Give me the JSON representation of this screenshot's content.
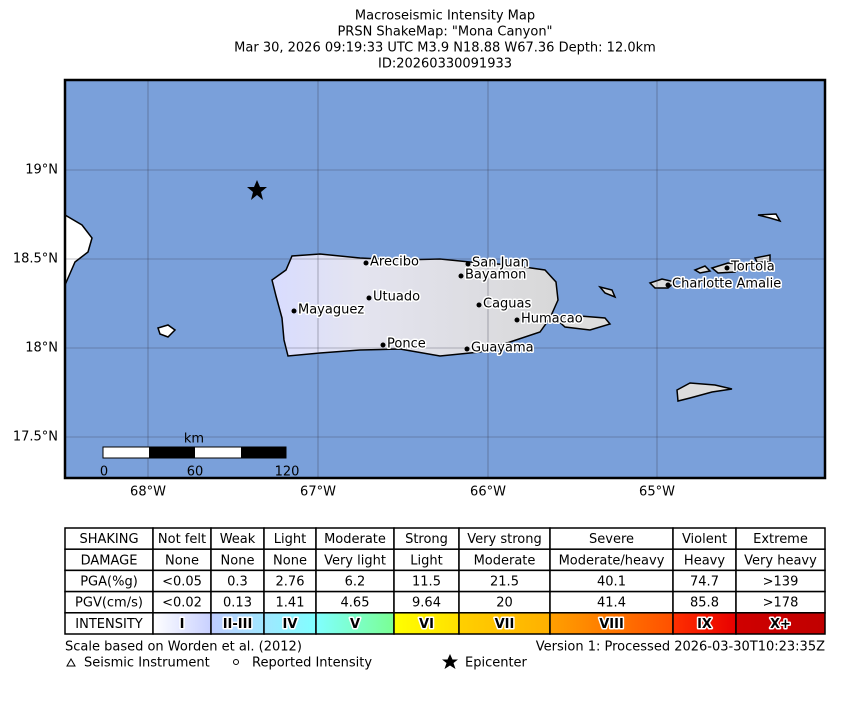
{
  "header": {
    "title_lines": [
      "Macroseismic Intensity Map",
      "PRSN ShakeMap: \"Mona Canyon\"",
      "Mar 30, 2026 09:19:33 UTC M3.9 N18.88 W67.36 Depth: 12.0km",
      "ID:20260330091933"
    ]
  },
  "map": {
    "lat_labels": [
      "19°N",
      "18.5°N",
      "18°N",
      "17.5°N"
    ],
    "lon_labels": [
      "68°W",
      "67°W",
      "66°W",
      "65°W"
    ],
    "cities": [
      "Arecibo",
      "San Juan",
      "Bayamon",
      "Utuado",
      "Caguas",
      "Mayaguez",
      "Humacao",
      "Ponce",
      "Guayama",
      "Tortola",
      "Charlotte Amalie"
    ],
    "scale": {
      "unit": "km",
      "labels": [
        "0",
        "60",
        "120"
      ]
    }
  },
  "table": {
    "rows": [
      [
        "SHAKING",
        "Not felt",
        "Weak",
        "Light",
        "Moderate",
        "Strong",
        "Very strong",
        "Severe",
        "Violent",
        "Extreme"
      ],
      [
        "DAMAGE",
        "None",
        "None",
        "None",
        "Very light",
        "Light",
        "Moderate",
        "Moderate/heavy",
        "Heavy",
        "Very heavy"
      ],
      [
        "PGA(%g)",
        "<0.05",
        "0.3",
        "2.76",
        "6.2",
        "11.5",
        "21.5",
        "40.1",
        "74.7",
        ">139"
      ],
      [
        "PGV(cm/s)",
        "<0.02",
        "0.13",
        "1.41",
        "4.65",
        "9.64",
        "20",
        "41.4",
        "85.8",
        ">178"
      ],
      [
        "INTENSITY",
        "I",
        "II-III",
        "IV",
        "V",
        "VI",
        "VII",
        "VIII",
        "IX",
        "X+"
      ]
    ],
    "intensity_colors": [
      [
        "#ffffff",
        "#c8d0ff"
      ],
      [
        "#bfccff",
        "#a0e6ff"
      ],
      [
        "#a0e6ff",
        "#80ffff"
      ],
      [
        "#80ffff",
        "#7aff93"
      ],
      [
        "#ffff00",
        "#ffe000"
      ],
      [
        "#ffd000",
        "#ffb000"
      ],
      [
        "#ffa000",
        "#ff5000"
      ],
      [
        "#ff3000",
        "#e80000"
      ],
      [
        "#d00000",
        "#c00000"
      ]
    ]
  },
  "footer": {
    "scale_note": "Scale based on Worden et al. (2012)",
    "version": "Version 1: Processed 2026-03-30T10:23:35Z",
    "instrument": "Seismic Instrument",
    "reported": "Reported Intensity",
    "epicenter": "Epicenter"
  }
}
